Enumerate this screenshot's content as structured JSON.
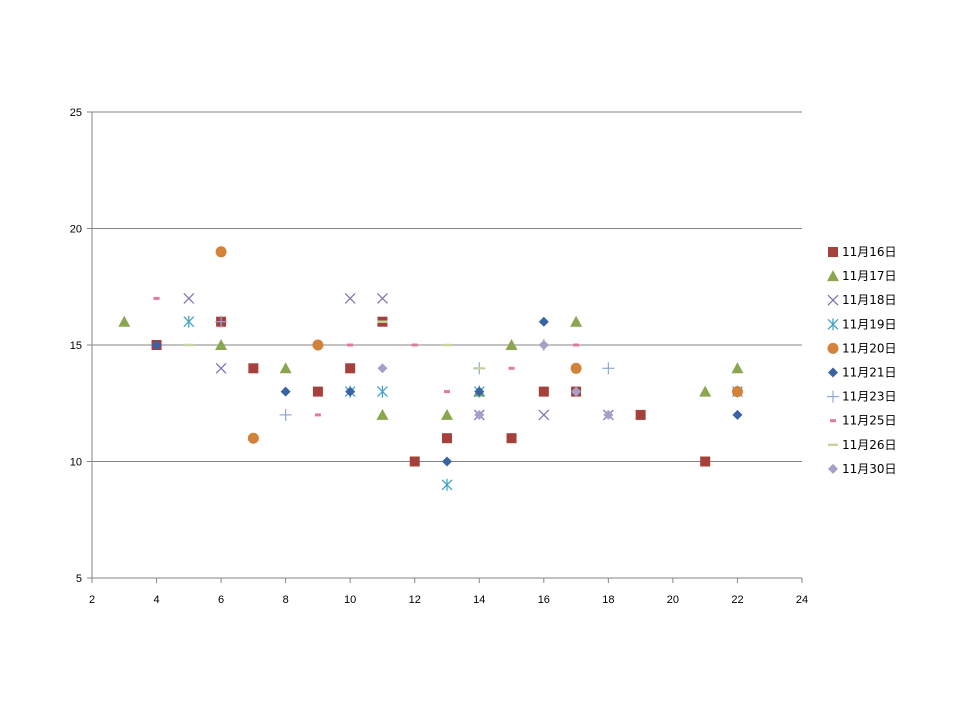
{
  "chart_data": {
    "type": "scatter",
    "title": "",
    "xlabel": "",
    "ylabel": "",
    "xlim": [
      2,
      24
    ],
    "ylim": [
      5,
      25
    ],
    "x_ticks": [
      2,
      4,
      6,
      8,
      10,
      12,
      14,
      16,
      18,
      20,
      22,
      24
    ],
    "y_ticks": [
      5,
      10,
      15,
      20,
      25
    ],
    "grid": "horizontal",
    "legend_position": "right",
    "series": [
      {
        "name": "11月16日",
        "marker": "square",
        "color": "#A5403C",
        "points": [
          [
            4,
            15
          ],
          [
            6,
            16
          ],
          [
            7,
            14
          ],
          [
            9,
            13
          ],
          [
            10,
            14
          ],
          [
            11,
            16
          ],
          [
            12,
            10
          ],
          [
            13,
            11
          ],
          [
            15,
            11
          ],
          [
            16,
            13
          ],
          [
            17,
            13
          ],
          [
            19,
            12
          ],
          [
            21,
            10
          ]
        ]
      },
      {
        "name": "11月17日",
        "marker": "triangle",
        "color": "#8AA64E",
        "points": [
          [
            3,
            16
          ],
          [
            6,
            15
          ],
          [
            8,
            14
          ],
          [
            11,
            12
          ],
          [
            13,
            12
          ],
          [
            14,
            13
          ],
          [
            15,
            15
          ],
          [
            17,
            16
          ],
          [
            21,
            13
          ],
          [
            22,
            14
          ]
        ]
      },
      {
        "name": "11月18日",
        "marker": "x",
        "color": "#7E70B3",
        "points": [
          [
            5,
            17
          ],
          [
            6,
            14
          ],
          [
            10,
            17
          ],
          [
            11,
            17
          ],
          [
            14,
            12
          ],
          [
            16,
            12
          ],
          [
            18,
            12
          ]
        ]
      },
      {
        "name": "11月19日",
        "marker": "asterisk",
        "color": "#3DA0C4",
        "points": [
          [
            5,
            16
          ],
          [
            10,
            13
          ],
          [
            11,
            13
          ],
          [
            13,
            9
          ],
          [
            14,
            13
          ],
          [
            22,
            13
          ]
        ]
      },
      {
        "name": "11月20日",
        "marker": "circle",
        "color": "#D3823A",
        "points": [
          [
            6,
            19
          ],
          [
            7,
            11
          ],
          [
            9,
            15
          ],
          [
            17,
            14
          ],
          [
            22,
            13
          ]
        ]
      },
      {
        "name": "11月21日",
        "marker": "diamond",
        "color": "#3A63A3",
        "points": [
          [
            4,
            15
          ],
          [
            8,
            13
          ],
          [
            10,
            13
          ],
          [
            13,
            10
          ],
          [
            14,
            13
          ],
          [
            16,
            16
          ],
          [
            22,
            12
          ]
        ]
      },
      {
        "name": "11月23日",
        "marker": "plus",
        "color": "#8FA8D6",
        "points": [
          [
            6,
            16
          ],
          [
            8,
            12
          ],
          [
            14,
            14
          ],
          [
            16,
            15
          ],
          [
            18,
            14
          ]
        ]
      },
      {
        "name": "11月25日",
        "marker": "dash",
        "color": "#E07C94",
        "points": [
          [
            4,
            17
          ],
          [
            9,
            12
          ],
          [
            10,
            15
          ],
          [
            12,
            15
          ],
          [
            13,
            13
          ],
          [
            15,
            14
          ],
          [
            17,
            15
          ]
        ]
      },
      {
        "name": "11月26日",
        "marker": "longdash",
        "color": "#C3D69B",
        "points": [
          [
            5,
            15
          ],
          [
            11,
            16
          ],
          [
            13,
            15
          ],
          [
            14,
            14
          ],
          [
            16,
            15
          ]
        ]
      },
      {
        "name": "11月30日",
        "marker": "diamond",
        "color": "#A5A0C8",
        "points": [
          [
            11,
            14
          ],
          [
            14,
            12
          ],
          [
            16,
            15
          ],
          [
            17,
            13
          ],
          [
            18,
            12
          ]
        ]
      }
    ]
  }
}
